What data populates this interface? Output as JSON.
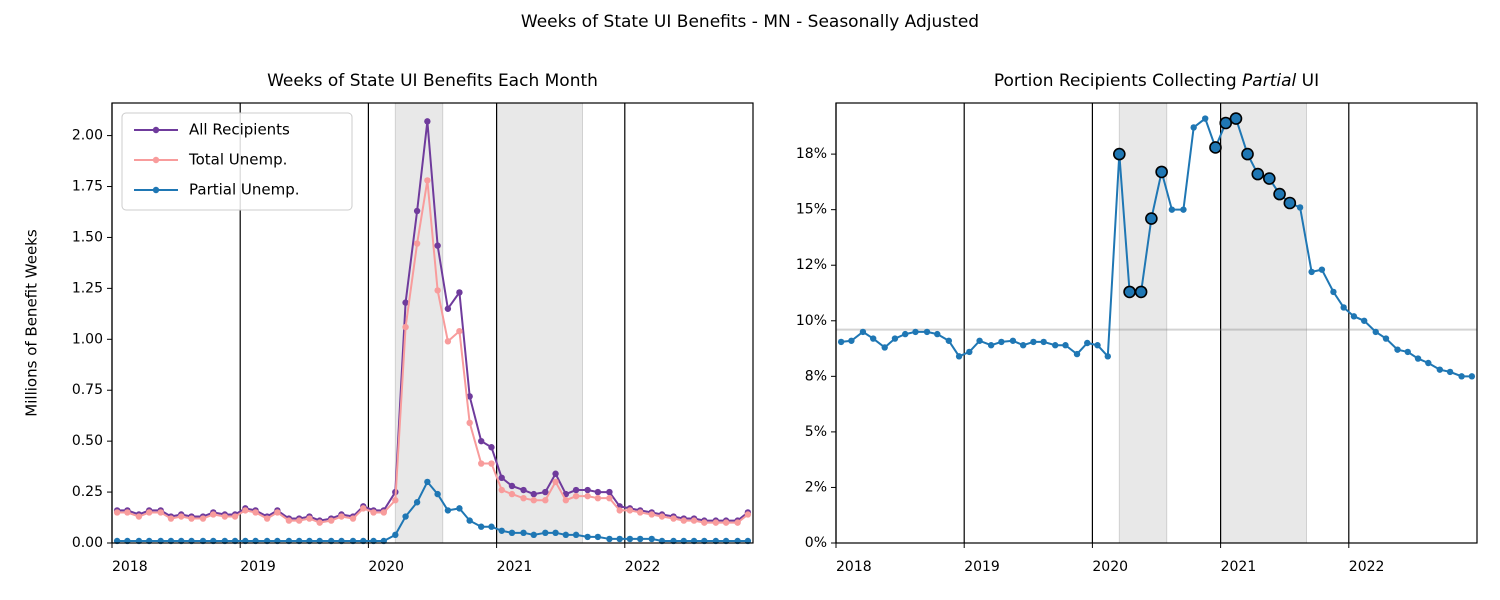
{
  "title": "Weeks of State UI Benefits - MN - Seasonally Adjusted",
  "chart_data": [
    {
      "type": "line",
      "title": "Weeks of State UI Benefits Each Month",
      "ylabel": "Millions of Benefit Weeks",
      "x": [
        2018.04,
        2018.12,
        2018.21,
        2018.29,
        2018.38,
        2018.46,
        2018.54,
        2018.62,
        2018.71,
        2018.79,
        2018.88,
        2018.96,
        2019.04,
        2019.12,
        2019.21,
        2019.29,
        2019.38,
        2019.46,
        2019.54,
        2019.62,
        2019.71,
        2019.79,
        2019.88,
        2019.96,
        2020.04,
        2020.12,
        2020.21,
        2020.29,
        2020.38,
        2020.46,
        2020.54,
        2020.62,
        2020.71,
        2020.79,
        2020.88,
        2020.96,
        2021.04,
        2021.12,
        2021.21,
        2021.29,
        2021.38,
        2021.46,
        2021.54,
        2021.62,
        2021.71,
        2021.79,
        2021.88,
        2021.96,
        2022.04,
        2022.12,
        2022.21,
        2022.29,
        2022.38,
        2022.46,
        2022.54,
        2022.62,
        2022.71,
        2022.79,
        2022.88,
        2022.96
      ],
      "series": [
        {
          "name": "All Recipients",
          "color": "#6f3b9c",
          "values": [
            0.16,
            0.16,
            0.14,
            0.16,
            0.16,
            0.13,
            0.14,
            0.13,
            0.13,
            0.15,
            0.14,
            0.14,
            0.17,
            0.16,
            0.13,
            0.16,
            0.12,
            0.12,
            0.13,
            0.11,
            0.12,
            0.14,
            0.13,
            0.18,
            0.16,
            0.16,
            0.25,
            1.18,
            1.63,
            2.07,
            1.46,
            1.15,
            1.23,
            0.72,
            0.5,
            0.47,
            0.32,
            0.28,
            0.26,
            0.24,
            0.25,
            0.34,
            0.24,
            0.26,
            0.26,
            0.25,
            0.25,
            0.18,
            0.17,
            0.16,
            0.15,
            0.14,
            0.13,
            0.12,
            0.12,
            0.11,
            0.11,
            0.11,
            0.11,
            0.15
          ]
        },
        {
          "name": "Total Unemp.",
          "color": "#f89c9c",
          "values": [
            0.15,
            0.15,
            0.13,
            0.15,
            0.15,
            0.12,
            0.13,
            0.12,
            0.12,
            0.14,
            0.13,
            0.13,
            0.16,
            0.15,
            0.12,
            0.15,
            0.11,
            0.11,
            0.12,
            0.1,
            0.11,
            0.13,
            0.12,
            0.17,
            0.15,
            0.15,
            0.21,
            1.06,
            1.47,
            1.78,
            1.24,
            0.99,
            1.04,
            0.59,
            0.39,
            0.39,
            0.26,
            0.24,
            0.22,
            0.21,
            0.21,
            0.3,
            0.21,
            0.23,
            0.23,
            0.22,
            0.22,
            0.16,
            0.16,
            0.15,
            0.14,
            0.13,
            0.12,
            0.11,
            0.11,
            0.1,
            0.1,
            0.1,
            0.1,
            0.14
          ]
        },
        {
          "name": "Partial Unemp.",
          "color": "#1f77b4",
          "values": [
            0.01,
            0.01,
            0.01,
            0.01,
            0.01,
            0.01,
            0.01,
            0.01,
            0.01,
            0.01,
            0.01,
            0.01,
            0.01,
            0.01,
            0.01,
            0.01,
            0.01,
            0.01,
            0.01,
            0.01,
            0.01,
            0.01,
            0.01,
            0.01,
            0.01,
            0.01,
            0.04,
            0.13,
            0.2,
            0.3,
            0.24,
            0.16,
            0.17,
            0.11,
            0.08,
            0.08,
            0.06,
            0.05,
            0.05,
            0.04,
            0.05,
            0.05,
            0.04,
            0.04,
            0.03,
            0.03,
            0.02,
            0.02,
            0.02,
            0.02,
            0.02,
            0.01,
            0.01,
            0.01,
            0.01,
            0.01,
            0.01,
            0.01,
            0.01,
            0.01
          ]
        }
      ],
      "xlim": [
        2018,
        2023
      ],
      "xticks": [
        2018,
        2019,
        2020,
        2021,
        2022
      ],
      "ylim": [
        0,
        2.16
      ],
      "yticks": [
        {
          "value": 0,
          "label": "0.00"
        },
        {
          "value": 0.25,
          "label": "0.25"
        },
        {
          "value": 0.5,
          "label": "0.50"
        },
        {
          "value": 0.75,
          "label": "0.75"
        },
        {
          "value": 1,
          "label": "1.00"
        },
        {
          "value": 1.25,
          "label": "1.25"
        },
        {
          "value": 1.5,
          "label": "1.50"
        },
        {
          "value": 1.75,
          "label": "1.75"
        },
        {
          "value": 2,
          "label": "2.00"
        }
      ],
      "grid": "x",
      "grid_color": "#000000",
      "legend": "upper left",
      "shaded_spans": [
        [
          2020.21,
          2020.58
        ],
        [
          2021.0,
          2021.67
        ]
      ]
    },
    {
      "type": "line",
      "title_parts": [
        {
          "text": "Portion Recipients Collecting "
        },
        {
          "text": "Partial",
          "italic": true
        },
        {
          "text": " UI"
        }
      ],
      "x": [
        2018.04,
        2018.12,
        2018.21,
        2018.29,
        2018.38,
        2018.46,
        2018.54,
        2018.62,
        2018.71,
        2018.79,
        2018.88,
        2018.96,
        2019.04,
        2019.12,
        2019.21,
        2019.29,
        2019.38,
        2019.46,
        2019.54,
        2019.62,
        2019.71,
        2019.79,
        2019.88,
        2019.96,
        2020.04,
        2020.12,
        2020.21,
        2020.29,
        2020.38,
        2020.46,
        2020.54,
        2020.62,
        2020.71,
        2020.79,
        2020.88,
        2020.96,
        2021.04,
        2021.12,
        2021.21,
        2021.29,
        2021.38,
        2021.46,
        2021.54,
        2021.62,
        2021.71,
        2021.79,
        2021.88,
        2021.96,
        2022.04,
        2022.12,
        2022.21,
        2022.29,
        2022.38,
        2022.46,
        2022.54,
        2022.62,
        2022.71,
        2022.79,
        2022.88,
        2022.96
      ],
      "series": [
        {
          "color": "#1f77b4",
          "values": [
            9.05,
            9.1,
            9.5,
            9.2,
            8.8,
            9.2,
            9.4,
            9.5,
            9.5,
            9.4,
            9.1,
            8.4,
            8.6,
            9.1,
            8.9,
            9.05,
            9.1,
            8.9,
            9.05,
            9.05,
            8.9,
            8.9,
            8.5,
            9.0,
            8.9,
            8.4,
            17.5,
            11.3,
            11.3,
            14.6,
            16.7,
            15.0,
            15.0,
            18.7,
            19.1,
            17.8,
            18.9,
            19.1,
            17.5,
            16.6,
            16.4,
            15.7,
            15.3,
            15.1,
            12.2,
            12.3,
            11.3,
            10.6,
            10.2,
            10.0,
            9.5,
            9.2,
            8.7,
            8.6,
            8.3,
            8.1,
            7.8,
            7.7,
            7.5,
            7.5
          ]
        }
      ],
      "highlighted_points": [
        26,
        27,
        28,
        29,
        30,
        35,
        36,
        37,
        38,
        39,
        40,
        41,
        42
      ],
      "xlim": [
        2018,
        2023
      ],
      "xticks": [
        2018,
        2019,
        2020,
        2021,
        2022
      ],
      "ylim": [
        0,
        19.8
      ],
      "yticks": [
        {
          "value": 0,
          "label": "0%"
        },
        {
          "value": 2.5,
          "label": "2%"
        },
        {
          "value": 5,
          "label": "5%"
        },
        {
          "value": 7.5,
          "label": "8%"
        },
        {
          "value": 10,
          "label": "10%"
        },
        {
          "value": 12.5,
          "label": "12%"
        },
        {
          "value": 15,
          "label": "15%"
        },
        {
          "value": 17.5,
          "label": "18%"
        }
      ],
      "grid": "x",
      "grid_color": "#000000",
      "hline": 9.6,
      "shaded_spans": [
        [
          2020.21,
          2020.58
        ],
        [
          2021.0,
          2021.67
        ]
      ]
    }
  ]
}
